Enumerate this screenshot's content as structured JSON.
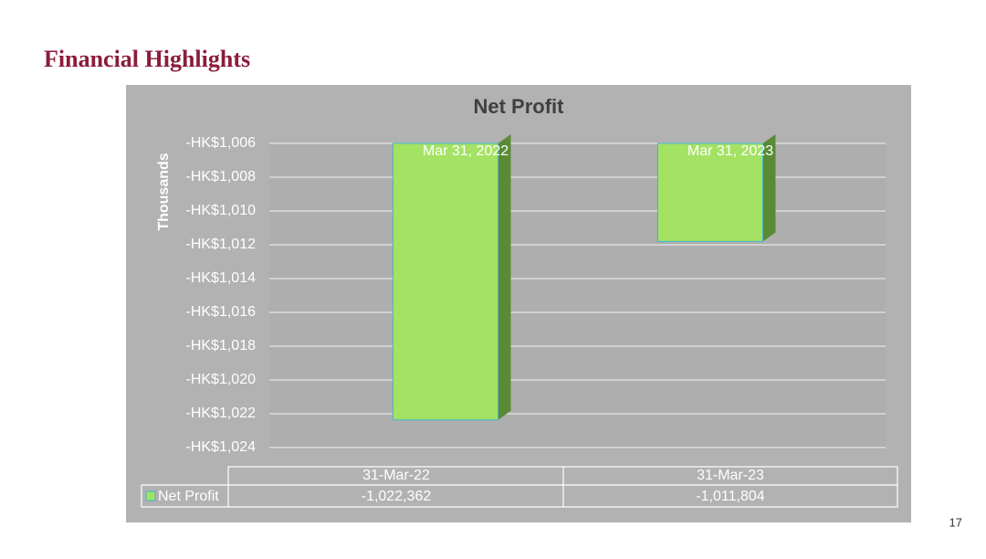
{
  "slide": {
    "title": "Financial Highlights",
    "page_number": "17"
  },
  "chart_data": {
    "type": "bar",
    "title": "Net Profit",
    "y_label": "Thousands",
    "categories": [
      "31-Mar-22",
      "31-Mar-23"
    ],
    "bar_labels": [
      "Mar 31, 2022",
      "Mar 31, 2023"
    ],
    "series": [
      {
        "name": "Net Profit",
        "color": "#a4e264",
        "values": [
          -1022.362,
          -1011.804
        ],
        "value_labels": [
          "-1,022,362",
          "-1,011,804"
        ]
      }
    ],
    "ylim": [
      -1024,
      -1006
    ],
    "yticks": [
      {
        "value": -1006,
        "label": "-HK$1,006"
      },
      {
        "value": -1008,
        "label": "-HK$1,008"
      },
      {
        "value": -1010,
        "label": "-HK$1,010"
      },
      {
        "value": -1012,
        "label": "-HK$1,012"
      },
      {
        "value": -1014,
        "label": "-HK$1,014"
      },
      {
        "value": -1016,
        "label": "-HK$1,016"
      },
      {
        "value": -1018,
        "label": "-HK$1,018"
      },
      {
        "value": -1020,
        "label": "-HK$1,020"
      },
      {
        "value": -1022,
        "label": "-HK$1,022"
      },
      {
        "value": -1024,
        "label": "-HK$1,024"
      }
    ],
    "grid": true
  }
}
